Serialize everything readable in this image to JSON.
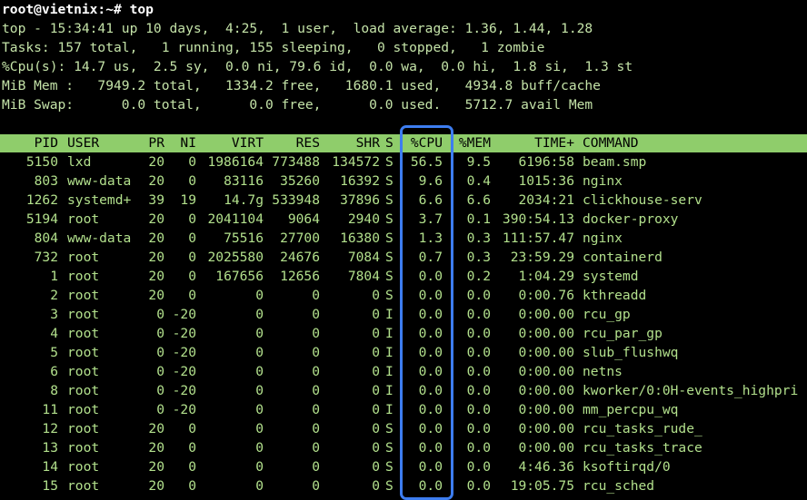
{
  "prompt": "root@vietnix:~# top",
  "summary": [
    "top - 15:34:41 up 10 days,  4:25,  1 user,  load average: 1.36, 1.44, 1.28",
    "Tasks: 157 total,   1 running, 155 sleeping,   0 stopped,   1 zombie",
    "%Cpu(s): 14.7 us,  2.5 sy,  0.0 ni, 79.6 id,  0.0 wa,  0.0 hi,  1.8 si,  1.3 st",
    "MiB Mem :   7949.2 total,   1334.2 free,   1680.1 used,   4934.8 buff/cache",
    "MiB Swap:      0.0 total,      0.0 free,      0.0 used.   5712.7 avail Mem"
  ],
  "table": {
    "header": [
      "PID",
      "USER",
      "PR",
      "NI",
      "VIRT",
      "RES",
      "SHR",
      "S",
      "%CPU",
      "%MEM",
      "TIME+",
      "COMMAND"
    ],
    "rows": [
      [
        "5150",
        "lxd",
        "20",
        "0",
        "1986164",
        "773488",
        "134572",
        "S",
        "56.5",
        "9.5",
        "6196:58",
        "beam.smp"
      ],
      [
        "803",
        "www-data",
        "20",
        "0",
        "83116",
        "35260",
        "16392",
        "S",
        "9.6",
        "0.4",
        "1015:36",
        "nginx"
      ],
      [
        "1262",
        "systemd+",
        "39",
        "19",
        "14.7g",
        "533948",
        "37896",
        "S",
        "6.6",
        "6.6",
        "2034:21",
        "clickhouse-serv"
      ],
      [
        "5194",
        "root",
        "20",
        "0",
        "2041104",
        "9064",
        "2940",
        "S",
        "3.7",
        "0.1",
        "390:54.13",
        "docker-proxy"
      ],
      [
        "804",
        "www-data",
        "20",
        "0",
        "75516",
        "27700",
        "16380",
        "S",
        "1.3",
        "0.3",
        "111:57.47",
        "nginx"
      ],
      [
        "732",
        "root",
        "20",
        "0",
        "2025580",
        "24676",
        "7084",
        "S",
        "0.7",
        "0.3",
        "23:59.29",
        "containerd"
      ],
      [
        "1",
        "root",
        "20",
        "0",
        "167656",
        "12656",
        "7804",
        "S",
        "0.0",
        "0.2",
        "1:04.29",
        "systemd"
      ],
      [
        "2",
        "root",
        "20",
        "0",
        "0",
        "0",
        "0",
        "S",
        "0.0",
        "0.0",
        "0:00.76",
        "kthreadd"
      ],
      [
        "3",
        "root",
        "0",
        "-20",
        "0",
        "0",
        "0",
        "I",
        "0.0",
        "0.0",
        "0:00.00",
        "rcu_gp"
      ],
      [
        "4",
        "root",
        "0",
        "-20",
        "0",
        "0",
        "0",
        "I",
        "0.0",
        "0.0",
        "0:00.00",
        "rcu_par_gp"
      ],
      [
        "5",
        "root",
        "0",
        "-20",
        "0",
        "0",
        "0",
        "I",
        "0.0",
        "0.0",
        "0:00.00",
        "slub_flushwq"
      ],
      [
        "6",
        "root",
        "0",
        "-20",
        "0",
        "0",
        "0",
        "I",
        "0.0",
        "0.0",
        "0:00.00",
        "netns"
      ],
      [
        "8",
        "root",
        "0",
        "-20",
        "0",
        "0",
        "0",
        "I",
        "0.0",
        "0.0",
        "0:00.00",
        "kworker/0:0H-events_highpri"
      ],
      [
        "11",
        "root",
        "0",
        "-20",
        "0",
        "0",
        "0",
        "I",
        "0.0",
        "0.0",
        "0:00.00",
        "mm_percpu_wq"
      ],
      [
        "12",
        "root",
        "20",
        "0",
        "0",
        "0",
        "0",
        "S",
        "0.0",
        "0.0",
        "0:00.00",
        "rcu_tasks_rude_"
      ],
      [
        "13",
        "root",
        "20",
        "0",
        "0",
        "0",
        "0",
        "S",
        "0.0",
        "0.0",
        "0:00.00",
        "rcu_tasks_trace"
      ],
      [
        "14",
        "root",
        "20",
        "0",
        "0",
        "0",
        "0",
        "S",
        "0.0",
        "0.0",
        "4:46.36",
        "ksoftirqd/0"
      ],
      [
        "15",
        "root",
        "20",
        "0",
        "0",
        "0",
        "0",
        "S",
        "0.0",
        "0.0",
        "19:05.75",
        "rcu_sched"
      ]
    ]
  }
}
